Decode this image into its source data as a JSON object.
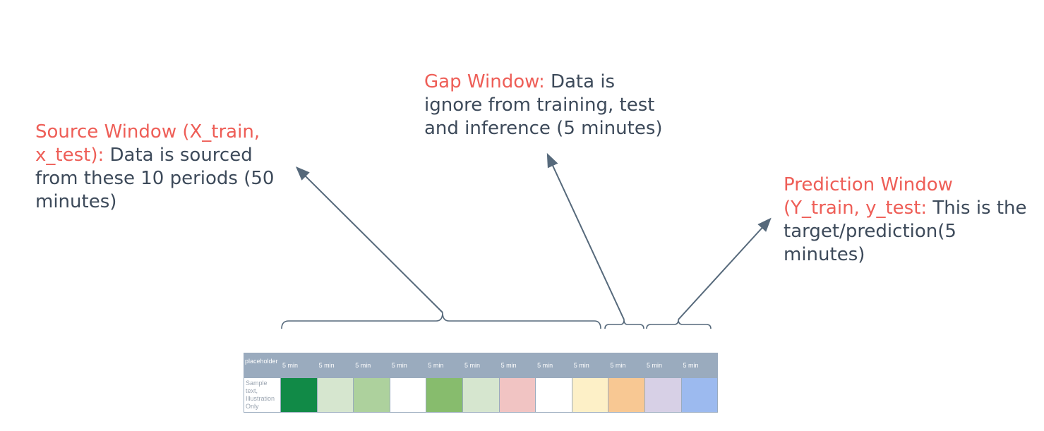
{
  "labels": {
    "source": {
      "highlight": "Source Window (X_train, x_test):",
      "text": " Data is sourced from these 10 periods (50 minutes)"
    },
    "gap": {
      "highlight": "Gap Window:",
      "text": " Data is ignore from training, test and inference (5 minutes)"
    },
    "prediction": {
      "highlight": "Prediction Window (Y_train, y_test:",
      "text": " This is the target/prediction(5 minutes)"
    }
  },
  "table": {
    "header_first": "placeholder",
    "row_label": "Sample text, Illustration Only",
    "periods": [
      {
        "label": "5 min",
        "color": "#118a47"
      },
      {
        "label": "5 min",
        "color": "#d6e6cf"
      },
      {
        "label": "5 min",
        "color": "#add19d"
      },
      {
        "label": "5 min",
        "color": "#ffffff"
      },
      {
        "label": "5 min",
        "color": "#87bc6d"
      },
      {
        "label": "5 min",
        "color": "#d6e6cf"
      },
      {
        "label": "5 min",
        "color": "#f1c4c3"
      },
      {
        "label": "5 min",
        "color": "#ffffff"
      },
      {
        "label": "5 min",
        "color": "#fdf0c7"
      },
      {
        "label": "5 min",
        "color": "#f8c893"
      },
      {
        "label": "5 min",
        "color": "#d7d0e6"
      },
      {
        "label": "5 min",
        "color": "#9cbaef"
      }
    ]
  },
  "colors": {
    "highlight": "#ee5e57",
    "text": "#3d4a5a",
    "arrow": "#56697b",
    "header": "#9aabbe"
  }
}
